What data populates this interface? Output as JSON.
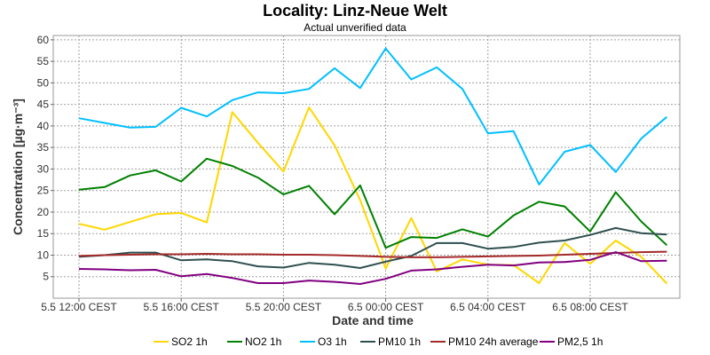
{
  "chart_data": {
    "type": "line",
    "title": "Locality: Linz-Neue Welt",
    "subtitle": "Actual unverified data",
    "xlabel": "Date and time",
    "ylabel": "Concentration [µg·m⁻³]",
    "ylim": [
      0,
      61
    ],
    "yticks": [
      5,
      10,
      15,
      20,
      25,
      30,
      35,
      40,
      45,
      50,
      55,
      60
    ],
    "grid": true,
    "legend_position": "bottom",
    "x": [
      "5.5 12:00",
      "5.5 13:00",
      "5.5 14:00",
      "5.5 15:00",
      "5.5 16:00",
      "5.5 17:00",
      "5.5 18:00",
      "5.5 19:00",
      "5.5 20:00",
      "5.5 21:00",
      "5.5 22:00",
      "5.5 23:00",
      "6.5 00:00",
      "6.5 01:00",
      "6.5 02:00",
      "6.5 03:00",
      "6.5 04:00",
      "6.5 05:00",
      "6.5 06:00",
      "6.5 07:00",
      "6.5 08:00",
      "6.5 09:00",
      "6.5 10:00",
      "6.5 11:00"
    ],
    "xticks": [
      "5.5 12:00 CEST",
      "5.5 16:00 CEST",
      "5.5 20:00 CEST",
      "6.5 00:00 CEST",
      "6.5 04:00 CEST",
      "6.5 08:00 CEST"
    ],
    "xtick_index": [
      0,
      4,
      8,
      12,
      16,
      20
    ],
    "series": [
      {
        "name": "SO2 1h",
        "color": "#ffd700",
        "values": [
          17.3,
          15.9,
          17.7,
          19.5,
          19.8,
          17.6,
          43.2,
          36.1,
          29.4,
          44.3,
          35.5,
          22.8,
          6.9,
          18.6,
          6.2,
          9.0,
          7.8,
          7.7,
          3.5,
          12.8,
          8.0,
          13.4,
          9.6,
          3.4
        ]
      },
      {
        "name": "NO2 1h",
        "color": "#008000",
        "values": [
          25.2,
          25.8,
          28.5,
          29.7,
          27.1,
          32.4,
          30.7,
          28.0,
          24.1,
          26.1,
          19.5,
          26.2,
          11.7,
          14.2,
          14.0,
          16.0,
          14.3,
          19.2,
          22.4,
          21.3,
          15.5,
          24.6,
          17.8,
          12.3
        ]
      },
      {
        "name": "O3 1h",
        "color": "#00bfff",
        "values": [
          41.8,
          40.7,
          39.6,
          39.8,
          44.2,
          42.2,
          46.0,
          47.8,
          47.6,
          48.6,
          53.4,
          48.8,
          58.0,
          50.8,
          53.6,
          48.6,
          38.3,
          38.8,
          26.4,
          34.0,
          35.6,
          29.3,
          37.1,
          42.1
        ]
      },
      {
        "name": "PM10 1h",
        "color": "#2f4f4f",
        "values": [
          9.6,
          10.0,
          10.6,
          10.6,
          8.8,
          9.0,
          8.6,
          7.4,
          7.1,
          8.2,
          7.8,
          7.0,
          8.5,
          9.8,
          12.8,
          12.8,
          11.5,
          11.9,
          12.9,
          13.4,
          14.7,
          16.3,
          15.1,
          14.8
        ]
      },
      {
        "name": "PM10 24h average",
        "color": "#a52a2a",
        "values": [
          9.8,
          10.0,
          10.1,
          10.2,
          10.2,
          10.3,
          10.2,
          10.2,
          10.1,
          10.1,
          10.0,
          9.8,
          9.6,
          9.5,
          9.5,
          9.6,
          9.7,
          9.8,
          9.9,
          10.1,
          10.3,
          10.5,
          10.7,
          10.8
        ]
      },
      {
        "name": "PM2,5 1h",
        "color": "#800080",
        "values": [
          6.8,
          6.7,
          6.5,
          6.6,
          5.1,
          5.6,
          4.7,
          3.5,
          3.5,
          4.1,
          3.8,
          3.3,
          4.5,
          6.4,
          6.7,
          7.3,
          7.8,
          7.6,
          8.3,
          8.4,
          8.9,
          10.7,
          8.6,
          8.7
        ]
      }
    ]
  }
}
